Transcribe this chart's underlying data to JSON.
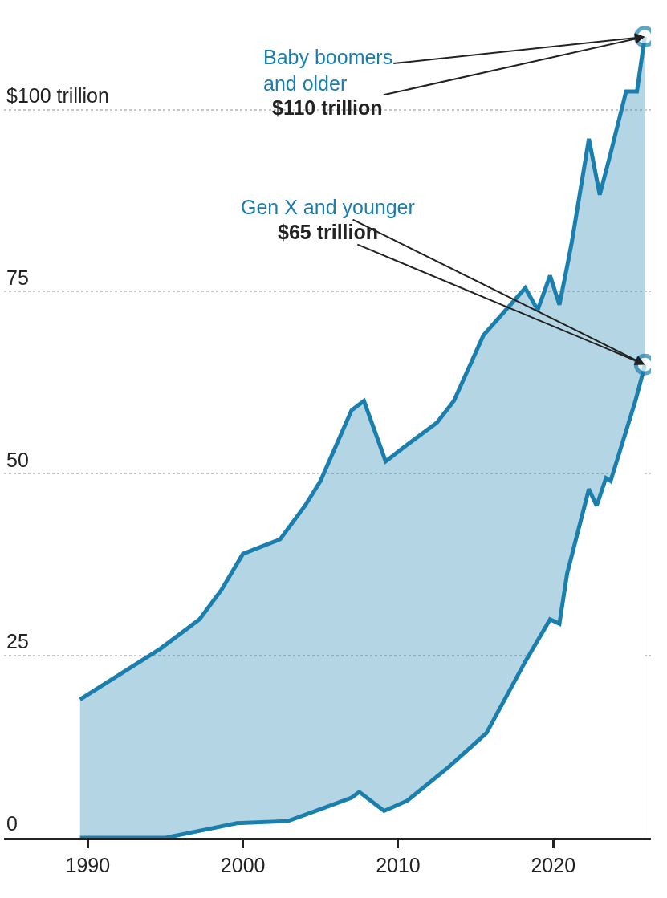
{
  "chart_data": {
    "type": "area",
    "series": [
      {
        "name": "Gen X and younger",
        "type": "line",
        "color": "#1b7fae",
        "x": [
          1989.5,
          1995.0,
          1999.6,
          2002.9,
          2007.0,
          2007.5,
          2009.1,
          2010.6,
          2013.3,
          2015.7,
          2018.2,
          2019.8,
          2020.4,
          2020.9,
          2022.3,
          2022.8,
          2023.4,
          2023.7,
          2025.3,
          2025.8,
          2025.9
        ],
        "values": [
          0,
          0,
          2,
          2.3,
          5.5,
          6.3,
          3.7,
          5.1,
          9.8,
          14.4,
          24.2,
          30,
          29.4,
          36.3,
          47.9,
          45.6,
          49.4,
          49,
          60,
          64,
          65
        ]
      },
      {
        "name": "Baby boomers and older",
        "type": "area",
        "color": "#1b7fae",
        "x": [
          1989.5,
          1994.7,
          1997.2,
          1998.6,
          2000.0,
          2002.4,
          2004.0,
          2005.0,
          2007.0,
          2007.8,
          2009.2,
          2010.6,
          2012.5,
          2013.6,
          2015.5,
          2018.2,
          2019.0,
          2019.8,
          2020.4,
          2020.9,
          2021.2,
          2022.3,
          2023.0,
          2023.7,
          2024.7,
          2025.4,
          2025.9
        ],
        "values": [
          19,
          26,
          30,
          34,
          39,
          41,
          45.6,
          49,
          58.7,
          60,
          51.7,
          54,
          57,
          60,
          69,
          75.5,
          72.5,
          77.2,
          73.2,
          78.5,
          81.8,
          96,
          88.3,
          94,
          102.5,
          102.5,
          110
        ]
      }
    ],
    "annotations": [
      {
        "text": "$65 trillion",
        "x": 2025.9,
        "y": 65
      },
      {
        "text": "$110 trillion",
        "x": 2025.9,
        "y": 110
      }
    ],
    "xlim": [
      1984.6,
      2026.3
    ],
    "xticks": [
      1990,
      2000,
      2010,
      2020
    ],
    "ylim": [
      0,
      114.5
    ],
    "yticks": [
      0,
      25,
      50,
      75,
      {
        "value": 100,
        "label": "$100 trillion"
      }
    ],
    "grid": "y",
    "legend": false
  }
}
